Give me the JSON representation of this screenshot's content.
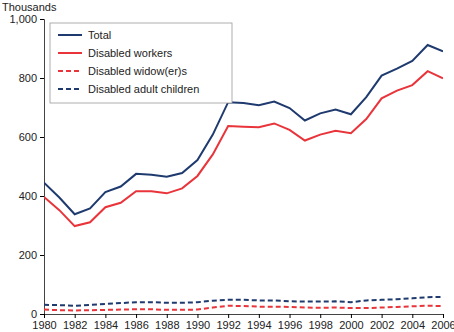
{
  "chart_data": {
    "type": "line",
    "y_label": "Thousands",
    "x": [
      1980,
      1981,
      1982,
      1983,
      1984,
      1985,
      1986,
      1987,
      1988,
      1989,
      1990,
      1991,
      1992,
      1993,
      1994,
      1995,
      1996,
      1997,
      1998,
      1999,
      2000,
      2001,
      2002,
      2003,
      2004,
      2005,
      2006
    ],
    "xlim": [
      1980,
      2006
    ],
    "xticks": [
      1980,
      1982,
      1984,
      1986,
      1988,
      1990,
      1992,
      1994,
      1996,
      1998,
      2000,
      2002,
      2004,
      2006
    ],
    "ylim": [
      0,
      1000
    ],
    "yticks": [
      0,
      200,
      400,
      600,
      800,
      {
        "value": 1000,
        "label": "1,000"
      }
    ],
    "legend": "upper left",
    "series": [
      {
        "name": "Total",
        "color": "#1f3a6e",
        "line_style": "solid",
        "values": [
          445,
          395,
          338,
          358,
          413,
          432,
          475,
          472,
          465,
          478,
          522,
          608,
          718,
          715,
          708,
          720,
          698,
          656,
          680,
          693,
          677,
          735,
          808,
          832,
          858,
          912,
          890
        ]
      },
      {
        "name": "Disabled workers",
        "color": "#e8343a",
        "line_style": "solid",
        "values": [
          397,
          352,
          298,
          311,
          362,
          377,
          416,
          416,
          409,
          426,
          468,
          541,
          637,
          635,
          633,
          646,
          624,
          588,
          608,
          621,
          613,
          661,
          731,
          757,
          776,
          823,
          799
        ]
      },
      {
        "name": "Disabled widow(er)s",
        "color": "#e8343a",
        "line_style": "dashed",
        "values": [
          15,
          13,
          12,
          13,
          14,
          15,
          16,
          16,
          14,
          14,
          15,
          22,
          28,
          27,
          25,
          25,
          24,
          22,
          21,
          22,
          20,
          20,
          22,
          24,
          26,
          28,
          27
        ]
      },
      {
        "name": "Disabled adult children",
        "color": "#1f3a6e",
        "line_style": "dashed",
        "values": [
          31,
          30,
          28,
          31,
          34,
          37,
          40,
          40,
          38,
          38,
          40,
          45,
          48,
          48,
          46,
          46,
          43,
          42,
          42,
          43,
          40,
          46,
          48,
          50,
          53,
          57,
          58
        ]
      }
    ]
  }
}
